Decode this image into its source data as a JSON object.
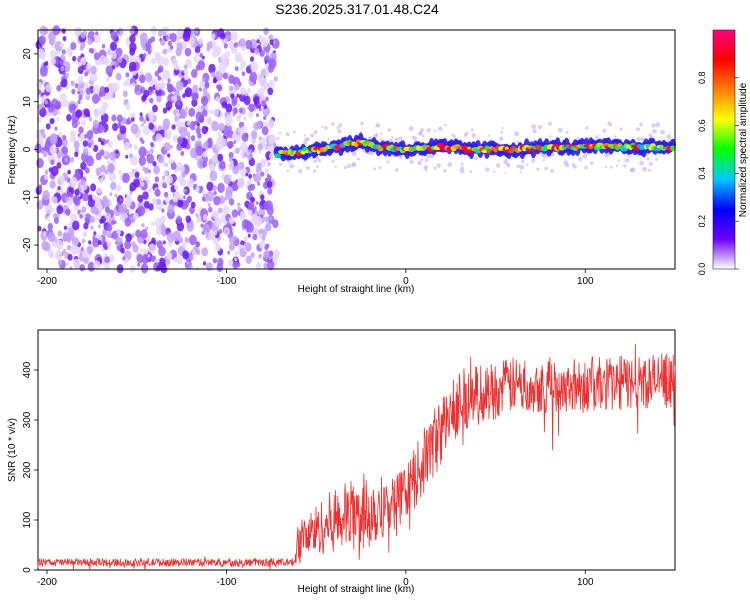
{
  "title": "S236.2025.317.01.48.C24",
  "chart_data": [
    {
      "type": "heatmap",
      "xlabel": "Height of straight line (km)",
      "ylabel": "Frequency (Hz)",
      "xlim": [
        -205,
        150
      ],
      "ylim": [
        -25,
        25
      ],
      "xticks": [
        -200,
        -100,
        0,
        100
      ],
      "yticks": [
        -20,
        -10,
        0,
        10,
        20
      ],
      "colorbar": {
        "label": "Normalized spectral amplitude",
        "range": [
          0,
          1
        ],
        "ticks": [
          "0.0",
          "0.2",
          "0.4",
          "0.6",
          "0.8"
        ],
        "colors": [
          "#ffffff",
          "#6b00ff",
          "#0000ff",
          "#00c8ff",
          "#00ff00",
          "#ffff00",
          "#ff8000",
          "#ff0000",
          "#ff0080"
        ]
      },
      "regions": [
        {
          "name": "noise",
          "x": [
            -205,
            -72
          ],
          "freq": [
            -25,
            25
          ],
          "amplitude": 0.1
        },
        {
          "name": "signal-band",
          "x": [
            -72,
            150
          ],
          "freq_center": 0,
          "freq_width": 4,
          "amplitude_peak": 0.95
        }
      ],
      "band_center": [
        {
          "x": -72,
          "f": -1
        },
        {
          "x": -60,
          "f": -0.5
        },
        {
          "x": -40,
          "f": 0.5
        },
        {
          "x": -25,
          "f": 1.5
        },
        {
          "x": -15,
          "f": 0.5
        },
        {
          "x": 0,
          "f": 0
        },
        {
          "x": 20,
          "f": 0.5
        },
        {
          "x": 40,
          "f": 0
        },
        {
          "x": 60,
          "f": 0
        },
        {
          "x": 80,
          "f": 0.5
        },
        {
          "x": 100,
          "f": 0.5
        },
        {
          "x": 120,
          "f": 0.5
        },
        {
          "x": 150,
          "f": 0.5
        }
      ]
    },
    {
      "type": "line",
      "xlabel": "Height of straight line (km)",
      "ylabel": "SNR (10 * v/v)",
      "xlim": [
        -205,
        150
      ],
      "ylim": [
        0,
        480
      ],
      "xticks": [
        -200,
        -100,
        0,
        100
      ],
      "yticks": [
        0,
        100,
        200,
        300,
        400
      ],
      "color": "#ee3030",
      "series_envelope": [
        {
          "x": -205,
          "mean": 15,
          "spread": 10
        },
        {
          "x": -62,
          "mean": 15,
          "spread": 10
        },
        {
          "x": -60,
          "mean": 60,
          "spread": 50
        },
        {
          "x": -40,
          "mean": 100,
          "spread": 80
        },
        {
          "x": -20,
          "mean": 120,
          "spread": 100
        },
        {
          "x": -10,
          "mean": 130,
          "spread": 70
        },
        {
          "x": 0,
          "mean": 150,
          "spread": 70
        },
        {
          "x": 15,
          "mean": 250,
          "spread": 90
        },
        {
          "x": 30,
          "mean": 340,
          "spread": 80
        },
        {
          "x": 60,
          "mean": 370,
          "spread": 70
        },
        {
          "x": 100,
          "mean": 370,
          "spread": 70
        },
        {
          "x": 150,
          "mean": 380,
          "spread": 70
        }
      ]
    }
  ]
}
